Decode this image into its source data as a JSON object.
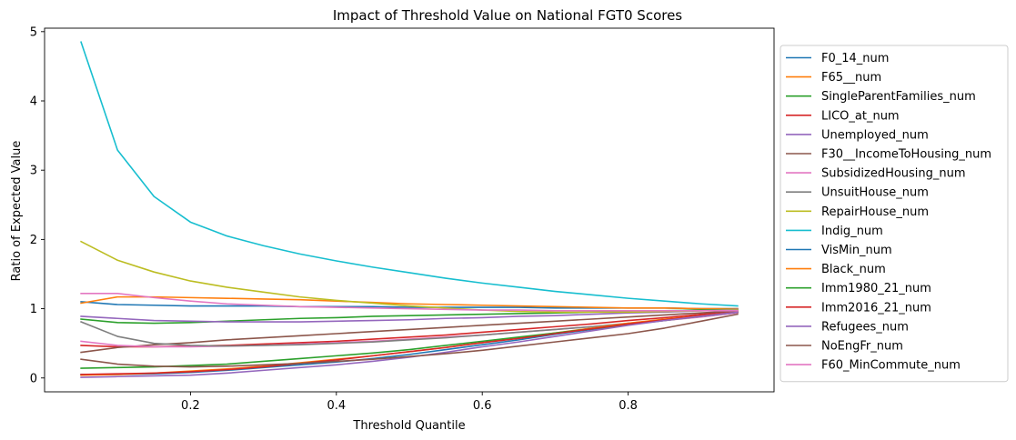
{
  "chart_data": {
    "type": "line",
    "title": "Impact of Threshold Value on National FGT0 Scores",
    "xlabel": "Threshold Quantile",
    "ylabel": "Ratio of Expected Value",
    "xlim": [
      0.0,
      1.0
    ],
    "ylim": [
      -0.2,
      5.05
    ],
    "xticks": [
      0.2,
      0.4,
      0.6,
      0.8
    ],
    "xtick_labels": [
      "0.2",
      "0.4",
      "0.6",
      "0.8"
    ],
    "yticks": [
      0,
      1,
      2,
      3,
      4,
      5
    ],
    "ytick_labels": [
      "0",
      "1",
      "2",
      "3",
      "4",
      "5"
    ],
    "grid": false,
    "legend_position": "outside-right",
    "x": [
      0.05,
      0.1,
      0.15,
      0.2,
      0.25,
      0.3,
      0.35,
      0.4,
      0.45,
      0.5,
      0.55,
      0.6,
      0.65,
      0.7,
      0.75,
      0.8,
      0.85,
      0.9,
      0.95
    ],
    "series": [
      {
        "name": "F0_14_num",
        "color": "#1f77b4",
        "values": [
          1.1,
          1.06,
          1.05,
          1.04,
          1.04,
          1.04,
          1.03,
          1.03,
          1.03,
          1.02,
          1.02,
          1.02,
          1.02,
          1.01,
          1.01,
          1.01,
          1.01,
          1.0,
          1.0
        ]
      },
      {
        "name": "F65__num",
        "color": "#ff7f0e",
        "values": [
          1.08,
          1.17,
          1.17,
          1.16,
          1.15,
          1.14,
          1.13,
          1.11,
          1.09,
          1.07,
          1.06,
          1.05,
          1.04,
          1.03,
          1.02,
          1.01,
          1.01,
          1.0,
          1.0
        ]
      },
      {
        "name": "SingleParentFamilies_num",
        "color": "#2ca02c",
        "values": [
          0.85,
          0.8,
          0.79,
          0.8,
          0.82,
          0.84,
          0.86,
          0.87,
          0.89,
          0.9,
          0.91,
          0.92,
          0.93,
          0.94,
          0.95,
          0.96,
          0.97,
          0.98,
          0.99
        ]
      },
      {
        "name": "LICO_at_num",
        "color": "#d62728",
        "values": [
          0.47,
          0.45,
          0.45,
          0.46,
          0.47,
          0.49,
          0.51,
          0.53,
          0.56,
          0.59,
          0.62,
          0.66,
          0.7,
          0.74,
          0.78,
          0.83,
          0.87,
          0.92,
          0.97
        ]
      },
      {
        "name": "Unemployed_num",
        "color": "#9467bd",
        "values": [
          0.89,
          0.86,
          0.83,
          0.82,
          0.81,
          0.81,
          0.81,
          0.82,
          0.83,
          0.84,
          0.86,
          0.87,
          0.89,
          0.9,
          0.92,
          0.94,
          0.95,
          0.97,
          0.99
        ]
      },
      {
        "name": "F30__IncomeToHousing_num",
        "color": "#8c564b",
        "values": [
          0.37,
          0.44,
          0.48,
          0.51,
          0.55,
          0.58,
          0.61,
          0.64,
          0.67,
          0.7,
          0.73,
          0.76,
          0.79,
          0.82,
          0.85,
          0.88,
          0.91,
          0.94,
          0.97
        ]
      },
      {
        "name": "SubsidizedHousing_num",
        "color": "#e377c2",
        "values": [
          0.53,
          0.47,
          0.45,
          0.45,
          0.46,
          0.47,
          0.49,
          0.51,
          0.53,
          0.56,
          0.59,
          0.62,
          0.66,
          0.7,
          0.74,
          0.78,
          0.83,
          0.88,
          0.94
        ]
      },
      {
        "name": "UnsuitHouse_num",
        "color": "#7f7f7f",
        "values": [
          0.81,
          0.6,
          0.5,
          0.47,
          0.46,
          0.47,
          0.48,
          0.5,
          0.52,
          0.55,
          0.58,
          0.62,
          0.66,
          0.7,
          0.74,
          0.79,
          0.84,
          0.89,
          0.95
        ]
      },
      {
        "name": "RepairHouse_num",
        "color": "#bcbd22",
        "values": [
          1.97,
          1.7,
          1.53,
          1.4,
          1.31,
          1.24,
          1.17,
          1.12,
          1.08,
          1.04,
          1.01,
          0.98,
          0.96,
          0.95,
          0.95,
          0.95,
          0.96,
          0.97,
          0.98
        ]
      },
      {
        "name": "Indig_num",
        "color": "#17becf",
        "values": [
          4.85,
          3.29,
          2.62,
          2.25,
          2.05,
          1.91,
          1.79,
          1.69,
          1.6,
          1.52,
          1.44,
          1.37,
          1.31,
          1.25,
          1.2,
          1.15,
          1.11,
          1.07,
          1.04
        ]
      },
      {
        "name": "VisMin_num",
        "color": "#1f77b4",
        "values": [
          0.05,
          0.05,
          0.06,
          0.08,
          0.11,
          0.15,
          0.19,
          0.23,
          0.28,
          0.34,
          0.41,
          0.48,
          0.55,
          0.63,
          0.7,
          0.77,
          0.84,
          0.9,
          0.95
        ]
      },
      {
        "name": "Black_num",
        "color": "#ff7f0e",
        "values": [
          0.04,
          0.05,
          0.07,
          0.1,
          0.13,
          0.17,
          0.22,
          0.27,
          0.32,
          0.38,
          0.44,
          0.51,
          0.58,
          0.65,
          0.72,
          0.79,
          0.85,
          0.9,
          0.95
        ]
      },
      {
        "name": "Imm1980_21_num",
        "color": "#2ca02c",
        "values": [
          0.14,
          0.15,
          0.16,
          0.18,
          0.2,
          0.24,
          0.28,
          0.32,
          0.36,
          0.41,
          0.47,
          0.53,
          0.59,
          0.65,
          0.71,
          0.77,
          0.83,
          0.89,
          0.95
        ]
      },
      {
        "name": "Imm2016_21_num",
        "color": "#d62728",
        "values": [
          0.05,
          0.06,
          0.07,
          0.09,
          0.12,
          0.16,
          0.21,
          0.26,
          0.32,
          0.38,
          0.44,
          0.51,
          0.57,
          0.64,
          0.71,
          0.78,
          0.84,
          0.9,
          0.95
        ]
      },
      {
        "name": "Refugees_num",
        "color": "#9467bd",
        "values": [
          0.01,
          0.02,
          0.03,
          0.04,
          0.07,
          0.11,
          0.15,
          0.19,
          0.24,
          0.3,
          0.37,
          0.45,
          0.52,
          0.6,
          0.68,
          0.76,
          0.83,
          0.89,
          0.95
        ]
      },
      {
        "name": "NoEngFr_num",
        "color": "#8c564b",
        "values": [
          0.27,
          0.2,
          0.17,
          0.16,
          0.17,
          0.19,
          0.21,
          0.24,
          0.27,
          0.31,
          0.35,
          0.4,
          0.46,
          0.52,
          0.58,
          0.64,
          0.72,
          0.82,
          0.92
        ]
      },
      {
        "name": "F60_MinCommute_num",
        "color": "#e377c2",
        "values": [
          1.22,
          1.22,
          1.16,
          1.11,
          1.07,
          1.05,
          1.03,
          1.02,
          1.01,
          1.0,
          0.99,
          0.98,
          0.98,
          0.97,
          0.97,
          0.97,
          0.97,
          0.97,
          0.97
        ]
      }
    ]
  }
}
